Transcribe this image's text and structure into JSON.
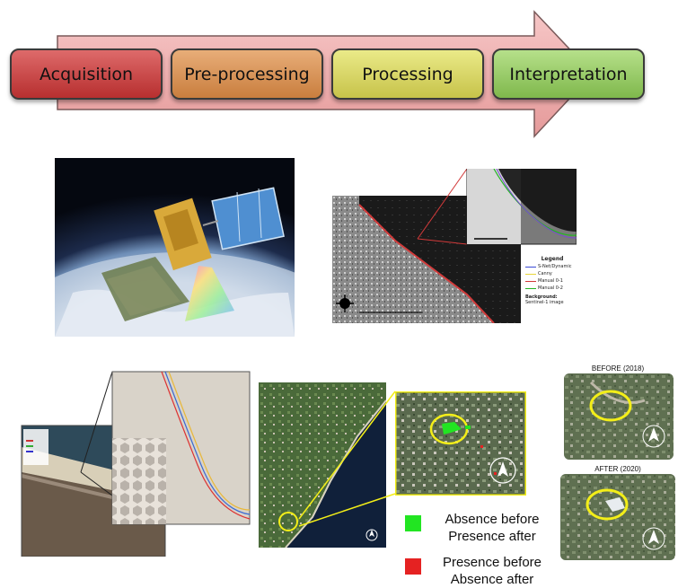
{
  "workflow": {
    "stages": [
      {
        "label": "Acquisition"
      },
      {
        "label": "Pre-processing"
      },
      {
        "label": "Processing"
      },
      {
        "label": "Interpretation"
      }
    ]
  },
  "sar_legend": {
    "title": "Legend",
    "items": [
      "S-Net/Dynamic",
      "Canny",
      "Manual 0-1",
      "Manual 0-2"
    ],
    "background_label": "Background:",
    "background_value": "Sentinel-1 image"
  },
  "change_legend": {
    "green_label": "Absence before\nPresence after",
    "red_label": "Presence before\nAbsence after"
  },
  "comparison": {
    "before_title": "BEFORE (2018)",
    "after_title": "AFTER (2020)"
  },
  "colors": {
    "acquisition": "#c63c3c",
    "preprocessing": "#cf8a4c",
    "processing": "#cdcc5a",
    "interpretation": "#8cc25a",
    "highlight_yellow": "#f3ee18",
    "green_marker": "#22e522",
    "red_marker": "#e52222"
  }
}
